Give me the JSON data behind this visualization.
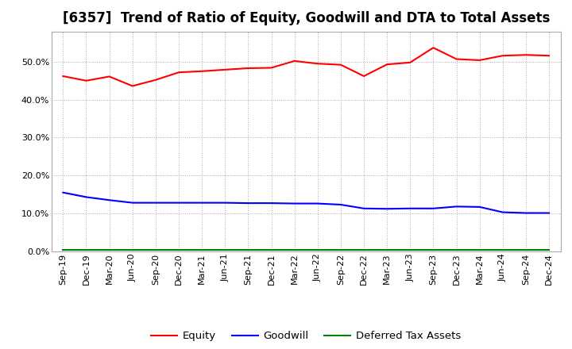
{
  "title": "[6357]  Trend of Ratio of Equity, Goodwill and DTA to Total Assets",
  "x_labels": [
    "Sep-19",
    "Dec-19",
    "Mar-20",
    "Jun-20",
    "Sep-20",
    "Dec-20",
    "Mar-21",
    "Jun-21",
    "Sep-21",
    "Dec-21",
    "Mar-22",
    "Jun-22",
    "Sep-22",
    "Dec-22",
    "Mar-23",
    "Jun-23",
    "Sep-23",
    "Dec-23",
    "Mar-24",
    "Jun-24",
    "Sep-24",
    "Dec-24"
  ],
  "equity": [
    0.462,
    0.45,
    0.461,
    0.436,
    0.452,
    0.472,
    0.475,
    0.479,
    0.483,
    0.484,
    0.502,
    0.495,
    0.492,
    0.462,
    0.493,
    0.498,
    0.537,
    0.507,
    0.504,
    0.516,
    0.518,
    0.516
  ],
  "goodwill": [
    0.155,
    0.143,
    0.135,
    0.128,
    0.128,
    0.128,
    0.128,
    0.128,
    0.127,
    0.127,
    0.126,
    0.126,
    0.123,
    0.113,
    0.112,
    0.113,
    0.113,
    0.118,
    0.117,
    0.103,
    0.101,
    0.101
  ],
  "dta": [
    0.003,
    0.003,
    0.003,
    0.003,
    0.003,
    0.003,
    0.003,
    0.003,
    0.003,
    0.003,
    0.003,
    0.003,
    0.003,
    0.003,
    0.003,
    0.003,
    0.003,
    0.003,
    0.003,
    0.003,
    0.003,
    0.003
  ],
  "equity_color": "#FF0000",
  "goodwill_color": "#0000FF",
  "dta_color": "#008000",
  "bg_color": "#FFFFFF",
  "plot_bg_color": "#FFFFFF",
  "grid_color": "#AAAAAA",
  "ylim": [
    0.0,
    0.58
  ],
  "yticks": [
    0.0,
    0.1,
    0.2,
    0.3,
    0.4,
    0.5
  ],
  "legend_labels": [
    "Equity",
    "Goodwill",
    "Deferred Tax Assets"
  ],
  "title_fontsize": 12,
  "tick_fontsize": 8,
  "legend_fontsize": 9.5
}
